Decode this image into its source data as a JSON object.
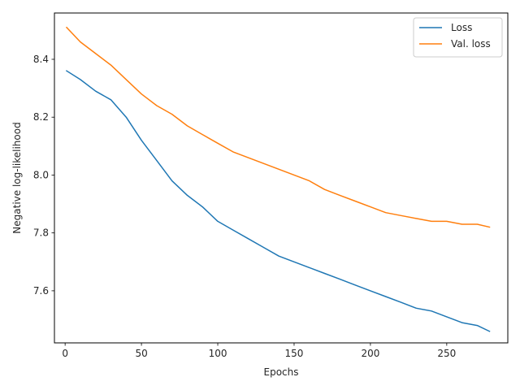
{
  "chart_data": {
    "type": "line",
    "title": "",
    "xlabel": "Epochs",
    "ylabel": "Negative log-likelihood",
    "xlim": [
      -7,
      290
    ],
    "ylim": [
      7.42,
      8.56
    ],
    "xticks": [
      0,
      50,
      100,
      150,
      200,
      250
    ],
    "yticks": [
      7.6,
      7.8,
      8.0,
      8.2,
      8.4
    ],
    "ytick_labels": [
      "7.6",
      "7.8",
      "8.0",
      "8.2",
      "8.4"
    ],
    "grid": false,
    "legend_position": "top-right",
    "series": [
      {
        "name": "Loss",
        "color": "#1f77b4",
        "x": [
          1,
          10,
          20,
          30,
          40,
          50,
          60,
          70,
          80,
          90,
          100,
          110,
          120,
          130,
          140,
          150,
          160,
          170,
          180,
          190,
          200,
          210,
          220,
          230,
          240,
          250,
          260,
          270,
          278
        ],
        "y": [
          8.36,
          8.33,
          8.29,
          8.26,
          8.2,
          8.12,
          8.05,
          7.98,
          7.93,
          7.89,
          7.84,
          7.81,
          7.78,
          7.75,
          7.72,
          7.7,
          7.68,
          7.66,
          7.64,
          7.62,
          7.6,
          7.58,
          7.56,
          7.54,
          7.53,
          7.51,
          7.49,
          7.48,
          7.46
        ]
      },
      {
        "name": "Val. loss",
        "color": "#ff7f0e",
        "x": [
          1,
          10,
          20,
          30,
          40,
          50,
          60,
          70,
          80,
          90,
          100,
          110,
          120,
          130,
          140,
          150,
          160,
          170,
          180,
          190,
          200,
          210,
          220,
          230,
          240,
          250,
          260,
          270,
          278
        ],
        "y": [
          8.51,
          8.46,
          8.42,
          8.38,
          8.33,
          8.28,
          8.24,
          8.21,
          8.17,
          8.14,
          8.11,
          8.08,
          8.06,
          8.04,
          8.02,
          8.0,
          7.98,
          7.95,
          7.93,
          7.91,
          7.89,
          7.87,
          7.86,
          7.85,
          7.84,
          7.84,
          7.83,
          7.83,
          7.82
        ]
      }
    ]
  }
}
